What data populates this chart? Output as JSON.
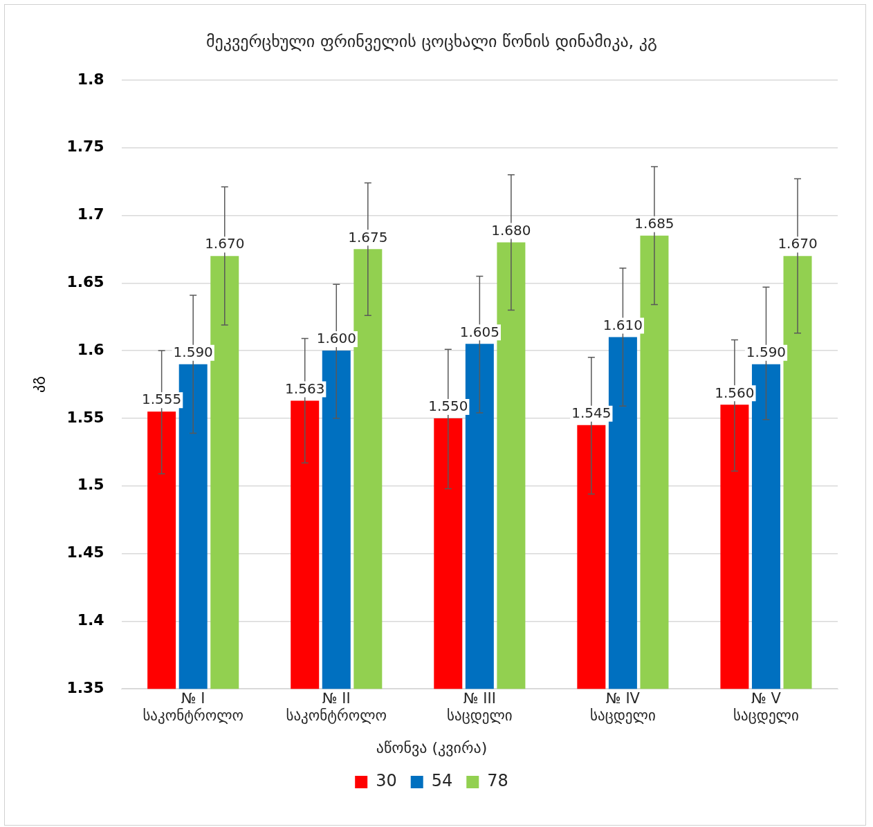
{
  "chart_data": {
    "type": "bar",
    "title": "მეკვერცხული ფრინველის ცოცხალი წონის დინამიკა, კგ",
    "ylabel": "კგ",
    "legend_title": "აწონვა (კვირა)",
    "categories": [
      "№ I\nსაკონტროლო",
      "№ II\nსაკონტროლო",
      "№ III\nსაცდელი",
      "№ IV\nსაცდელი",
      "№ V\nსაცდელი"
    ],
    "series": [
      {
        "name": "30",
        "color": "#ff0000",
        "values": [
          1.555,
          1.563,
          1.55,
          1.545,
          1.56
        ],
        "value_labels": [
          "1.555",
          "1.563",
          "1.550",
          "1.545",
          "1.560"
        ],
        "errors": [
          [
            1.509,
            1.6
          ],
          [
            1.517,
            1.609
          ],
          [
            1.498,
            1.601
          ],
          [
            1.494,
            1.595
          ],
          [
            1.511,
            1.608
          ]
        ]
      },
      {
        "name": "54",
        "color": "#0070c0",
        "values": [
          1.59,
          1.6,
          1.605,
          1.61,
          1.59
        ],
        "value_labels": [
          "1.590",
          "1.600",
          "1.605",
          "1.610",
          "1.590"
        ],
        "errors": [
          [
            1.539,
            1.641
          ],
          [
            1.55,
            1.649
          ],
          [
            1.554,
            1.655
          ],
          [
            1.559,
            1.661
          ],
          [
            1.549,
            1.647
          ]
        ]
      },
      {
        "name": "78",
        "color": "#92d050",
        "values": [
          1.67,
          1.675,
          1.68,
          1.685,
          1.67
        ],
        "value_labels": [
          "1.670",
          "1.675",
          "1.680",
          "1.685",
          "1.670"
        ],
        "errors": [
          [
            1.619,
            1.721
          ],
          [
            1.626,
            1.724
          ],
          [
            1.63,
            1.73
          ],
          [
            1.634,
            1.736
          ],
          [
            1.613,
            1.727
          ]
        ]
      }
    ],
    "ylim": [
      1.35,
      1.8
    ],
    "yticks": [
      1.35,
      1.4,
      1.45,
      1.5,
      1.55,
      1.6,
      1.65,
      1.7,
      1.75,
      1.8
    ],
    "grid": "y",
    "legend": "bottom"
  }
}
